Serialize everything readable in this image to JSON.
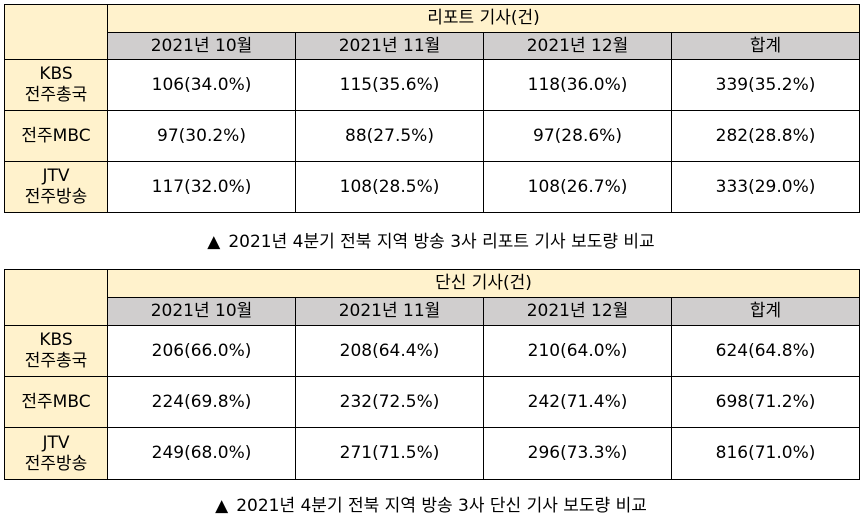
{
  "tables": [
    {
      "group_header": "리포트 기사(건)",
      "columns": [
        "2021년 10월",
        "2021년 11월",
        "2021년 12월",
        "합계"
      ],
      "rows": [
        {
          "label": [
            "KBS",
            "전주총국"
          ],
          "values": [
            "106(34.0%)",
            "115(35.6%)",
            "118(36.0%)",
            "339(35.2%)"
          ]
        },
        {
          "label": [
            "전주MBC"
          ],
          "values": [
            "97(30.2%)",
            "88(27.5%)",
            "97(28.6%)",
            "282(28.8%)"
          ]
        },
        {
          "label": [
            "JTV",
            "전주방송"
          ],
          "values": [
            "117(32.0%)",
            "108(28.5%)",
            "108(26.7%)",
            "333(29.0%)"
          ]
        }
      ],
      "caption": "2021년 4분기 전북 지역 방송 3사 리포트 기사 보도량 비교"
    },
    {
      "group_header": "단신 기사(건)",
      "columns": [
        "2021년 10월",
        "2021년 11월",
        "2021년 12월",
        "합계"
      ],
      "rows": [
        {
          "label": [
            "KBS",
            "전주총국"
          ],
          "values": [
            "206(66.0%)",
            "208(64.4%)",
            "210(64.0%)",
            "624(64.8%)"
          ]
        },
        {
          "label": [
            "전주MBC"
          ],
          "values": [
            "224(69.8%)",
            "232(72.5%)",
            "242(71.4%)",
            "698(71.2%)"
          ]
        },
        {
          "label": [
            "JTV",
            "전주방송"
          ],
          "values": [
            "249(68.0%)",
            "271(71.5%)",
            "296(73.3%)",
            "816(71.0%)"
          ]
        }
      ],
      "caption": "2021년 4분기 전북 지역 방송 3사 단신 기사 보도량 비교"
    }
  ],
  "caption_marker": "▲"
}
